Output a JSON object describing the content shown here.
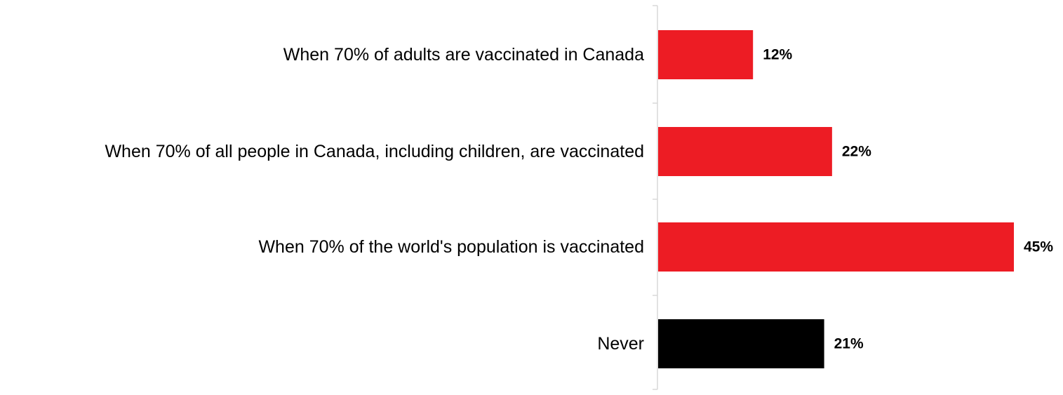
{
  "chart_data": {
    "type": "bar",
    "orientation": "horizontal",
    "categories": [
      "When 70% of adults are vaccinated in Canada",
      "When 70% of all people in Canada, including children, are vaccinated",
      "When 70% of the world's population is vaccinated",
      "Never"
    ],
    "values": [
      12,
      22,
      45,
      21
    ],
    "value_labels": [
      "12%",
      "22%",
      "45%",
      "21%"
    ],
    "bar_colors": [
      "#ed1c24",
      "#ed1c24",
      "#ed1c24",
      "#000000"
    ],
    "axis_color": "#d9d9d9",
    "xlim": [
      0,
      45
    ],
    "grid": false,
    "legend": "none"
  }
}
